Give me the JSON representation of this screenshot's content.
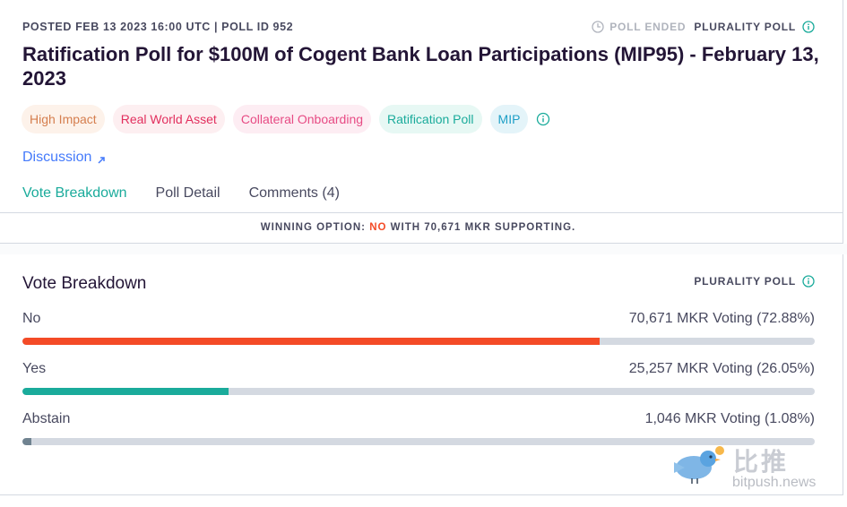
{
  "header": {
    "meta": "POSTED FEB 13 2023 16:00 UTC | POLL ID 952",
    "status": "POLL ENDED",
    "poll_type": "PLURALITY POLL"
  },
  "title": "Ratification Poll for $100M of Cogent Bank Loan Participations (MIP95) - February 13, 2023",
  "tags": [
    "High Impact",
    "Real World Asset",
    "Collateral Onboarding",
    "Ratification Poll",
    "MIP"
  ],
  "discussion_label": "Discussion",
  "tabs": [
    {
      "label": "Vote Breakdown",
      "active": true
    },
    {
      "label": "Poll Detail",
      "active": false
    },
    {
      "label": "Comments (4)",
      "active": false
    }
  ],
  "winning": {
    "prefix": "WINNING OPTION:",
    "option": "NO",
    "suffix": "WITH 70,671 MKR SUPPORTING."
  },
  "breakdown": {
    "title": "Vote Breakdown",
    "poll_type": "PLURALITY POLL",
    "options": [
      {
        "name": "No",
        "result": "70,671 MKR Voting (72.88%)",
        "percent": 72.88,
        "color": "#f44b27"
      },
      {
        "name": "Yes",
        "result": "25,257 MKR Voting (26.05%)",
        "percent": 26.05,
        "color": "#1aab9b"
      },
      {
        "name": "Abstain",
        "result": "1,046 MKR Voting (1.08%)",
        "percent": 1.08,
        "color": "#708390"
      }
    ]
  },
  "watermark": {
    "cn": "比推",
    "url": "bitpush.news"
  },
  "colors": {
    "accent": "#1aab9b",
    "link": "#447afb",
    "no": "#f44b27"
  }
}
